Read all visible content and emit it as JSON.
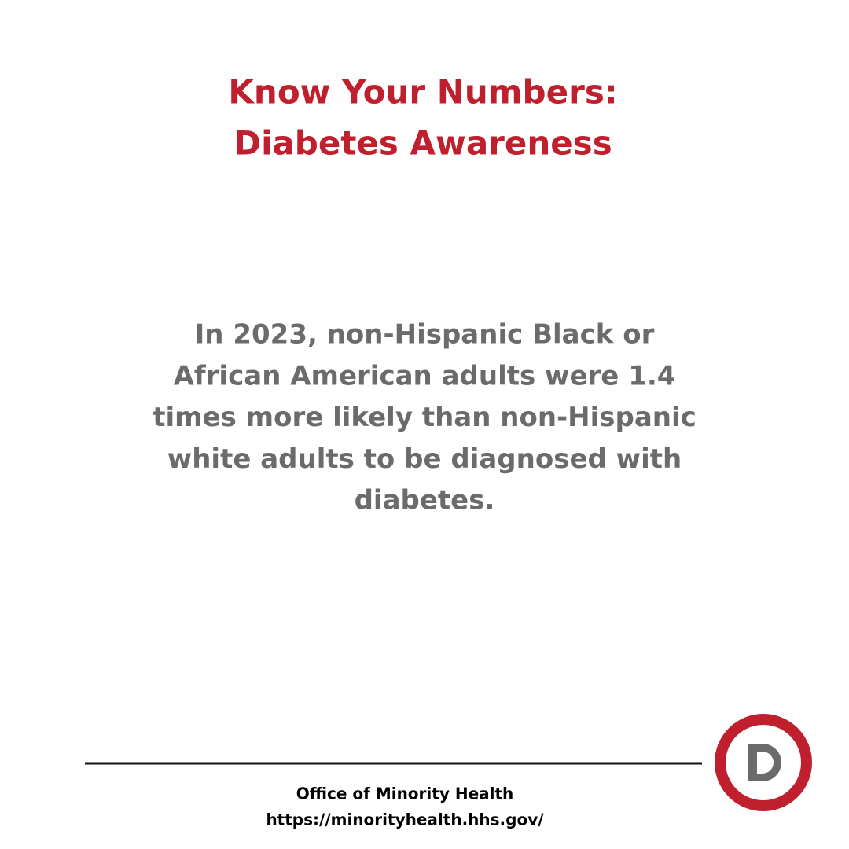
{
  "title": {
    "lines": [
      "Know Your Numbers:",
      "Diabetes Awareness"
    ]
  },
  "body": {
    "lines": [
      "In 2023, non-Hispanic Black or",
      "African American adults were 1.4",
      "times more likely than non-Hispanic",
      "white adults to be diagnosed with",
      "diabetes."
    ]
  },
  "footer": {
    "organization": "Office of Minority Health",
    "url": "https://minorityhealth.hhs.gov/"
  }
}
